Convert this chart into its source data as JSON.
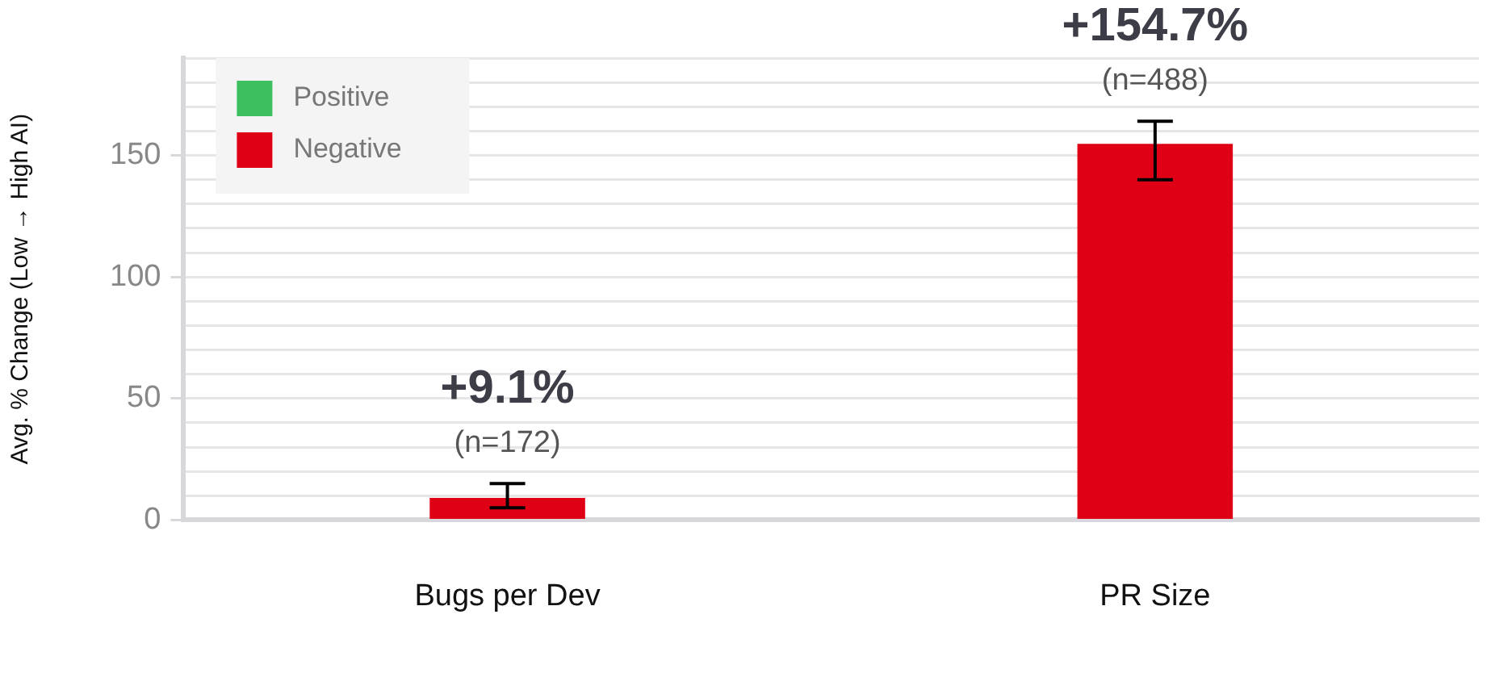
{
  "chart_data": {
    "type": "bar",
    "ylabel": "Avg. % Change (Low → High AI)",
    "categories": [
      "Bugs per Dev",
      "PR Size"
    ],
    "series": [
      {
        "name": "Positive",
        "color": "#3dbf5f",
        "values": [
          null,
          null
        ]
      },
      {
        "name": "Negative",
        "color": "#e00016",
        "values": [
          9.1,
          154.7
        ],
        "errors": [
          [
            5,
            15
          ],
          [
            140,
            164
          ]
        ],
        "value_labels": [
          "+9.1%",
          "+154.7%"
        ]
      }
    ],
    "annotations": [
      "(n=172)",
      "(n=488)"
    ],
    "ylim": [
      0,
      190
    ],
    "yticks": [
      0,
      {
        "value": 10,
        "label": null
      },
      {
        "value": 20,
        "label": null
      },
      {
        "value": 30,
        "label": null
      },
      {
        "value": 40,
        "label": null
      },
      50,
      {
        "value": 60,
        "label": null
      },
      {
        "value": 70,
        "label": null
      },
      {
        "value": 80,
        "label": null
      },
      {
        "value": 90,
        "label": null
      },
      100,
      {
        "value": 110,
        "label": null
      },
      {
        "value": 120,
        "label": null
      },
      {
        "value": 130,
        "label": null
      },
      {
        "value": 140,
        "label": null
      },
      150,
      {
        "value": 160,
        "label": null
      },
      {
        "value": 170,
        "label": null
      },
      {
        "value": 180,
        "label": null
      },
      {
        "value": 190,
        "label": null
      }
    ],
    "grid": "y",
    "legend": "top left"
  }
}
